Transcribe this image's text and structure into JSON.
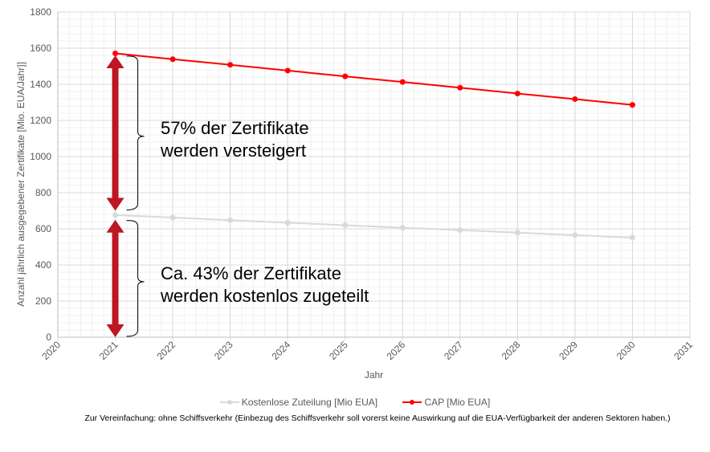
{
  "chart_data": {
    "type": "line",
    "title": "",
    "xlabel": "Jahr",
    "ylabel": "Anzahl jährlich ausgegebener  Zertifikate  [Mio. EUA/Jahr]]",
    "xlim": [
      2020,
      2031
    ],
    "ylim": [
      0,
      1800
    ],
    "x_ticks": [
      "2020",
      "2021",
      "2022",
      "2023",
      "2024",
      "2025",
      "2026",
      "2027",
      "2028",
      "2029",
      "2030",
      "2031"
    ],
    "y_ticks": [
      "0",
      "200",
      "400",
      "600",
      "800",
      "1000",
      "1200",
      "1400",
      "1600",
      "1800"
    ],
    "grid": true,
    "legend_position": "bottom",
    "x": [
      2021,
      2022,
      2023,
      2024,
      2025,
      2026,
      2027,
      2028,
      2029,
      2030
    ],
    "series": [
      {
        "name": "Kostenlose Zuteilung [Mio EUA]",
        "color": "#d9d9d9",
        "values": [
          676,
          662,
          648,
          634,
          620,
          606,
          593,
          579,
          565,
          551
        ]
      },
      {
        "name": "CAP [Mio EUA]",
        "color": "#ff0000",
        "values": [
          1571,
          1539,
          1508,
          1476,
          1444,
          1413,
          1381,
          1349,
          1318,
          1286
        ]
      }
    ],
    "annotations": [
      {
        "lines": [
          "57% der Zertifikate",
          "werden versteigert"
        ],
        "from": 700,
        "to": 1560
      },
      {
        "lines": [
          "Ca. 43% der Zertifikate",
          "werden kostenlos zugeteilt"
        ],
        "from": 0,
        "to": 650
      }
    ],
    "arrow_color": "#be1622",
    "note": "Zur Vereinfachung: ohne Schiffsverkehr (Einbezug des Schiffsverkehr soll vorerst keine Auswirkung auf die EUA-Verfügbarkeit der anderen Sektoren haben.)"
  }
}
